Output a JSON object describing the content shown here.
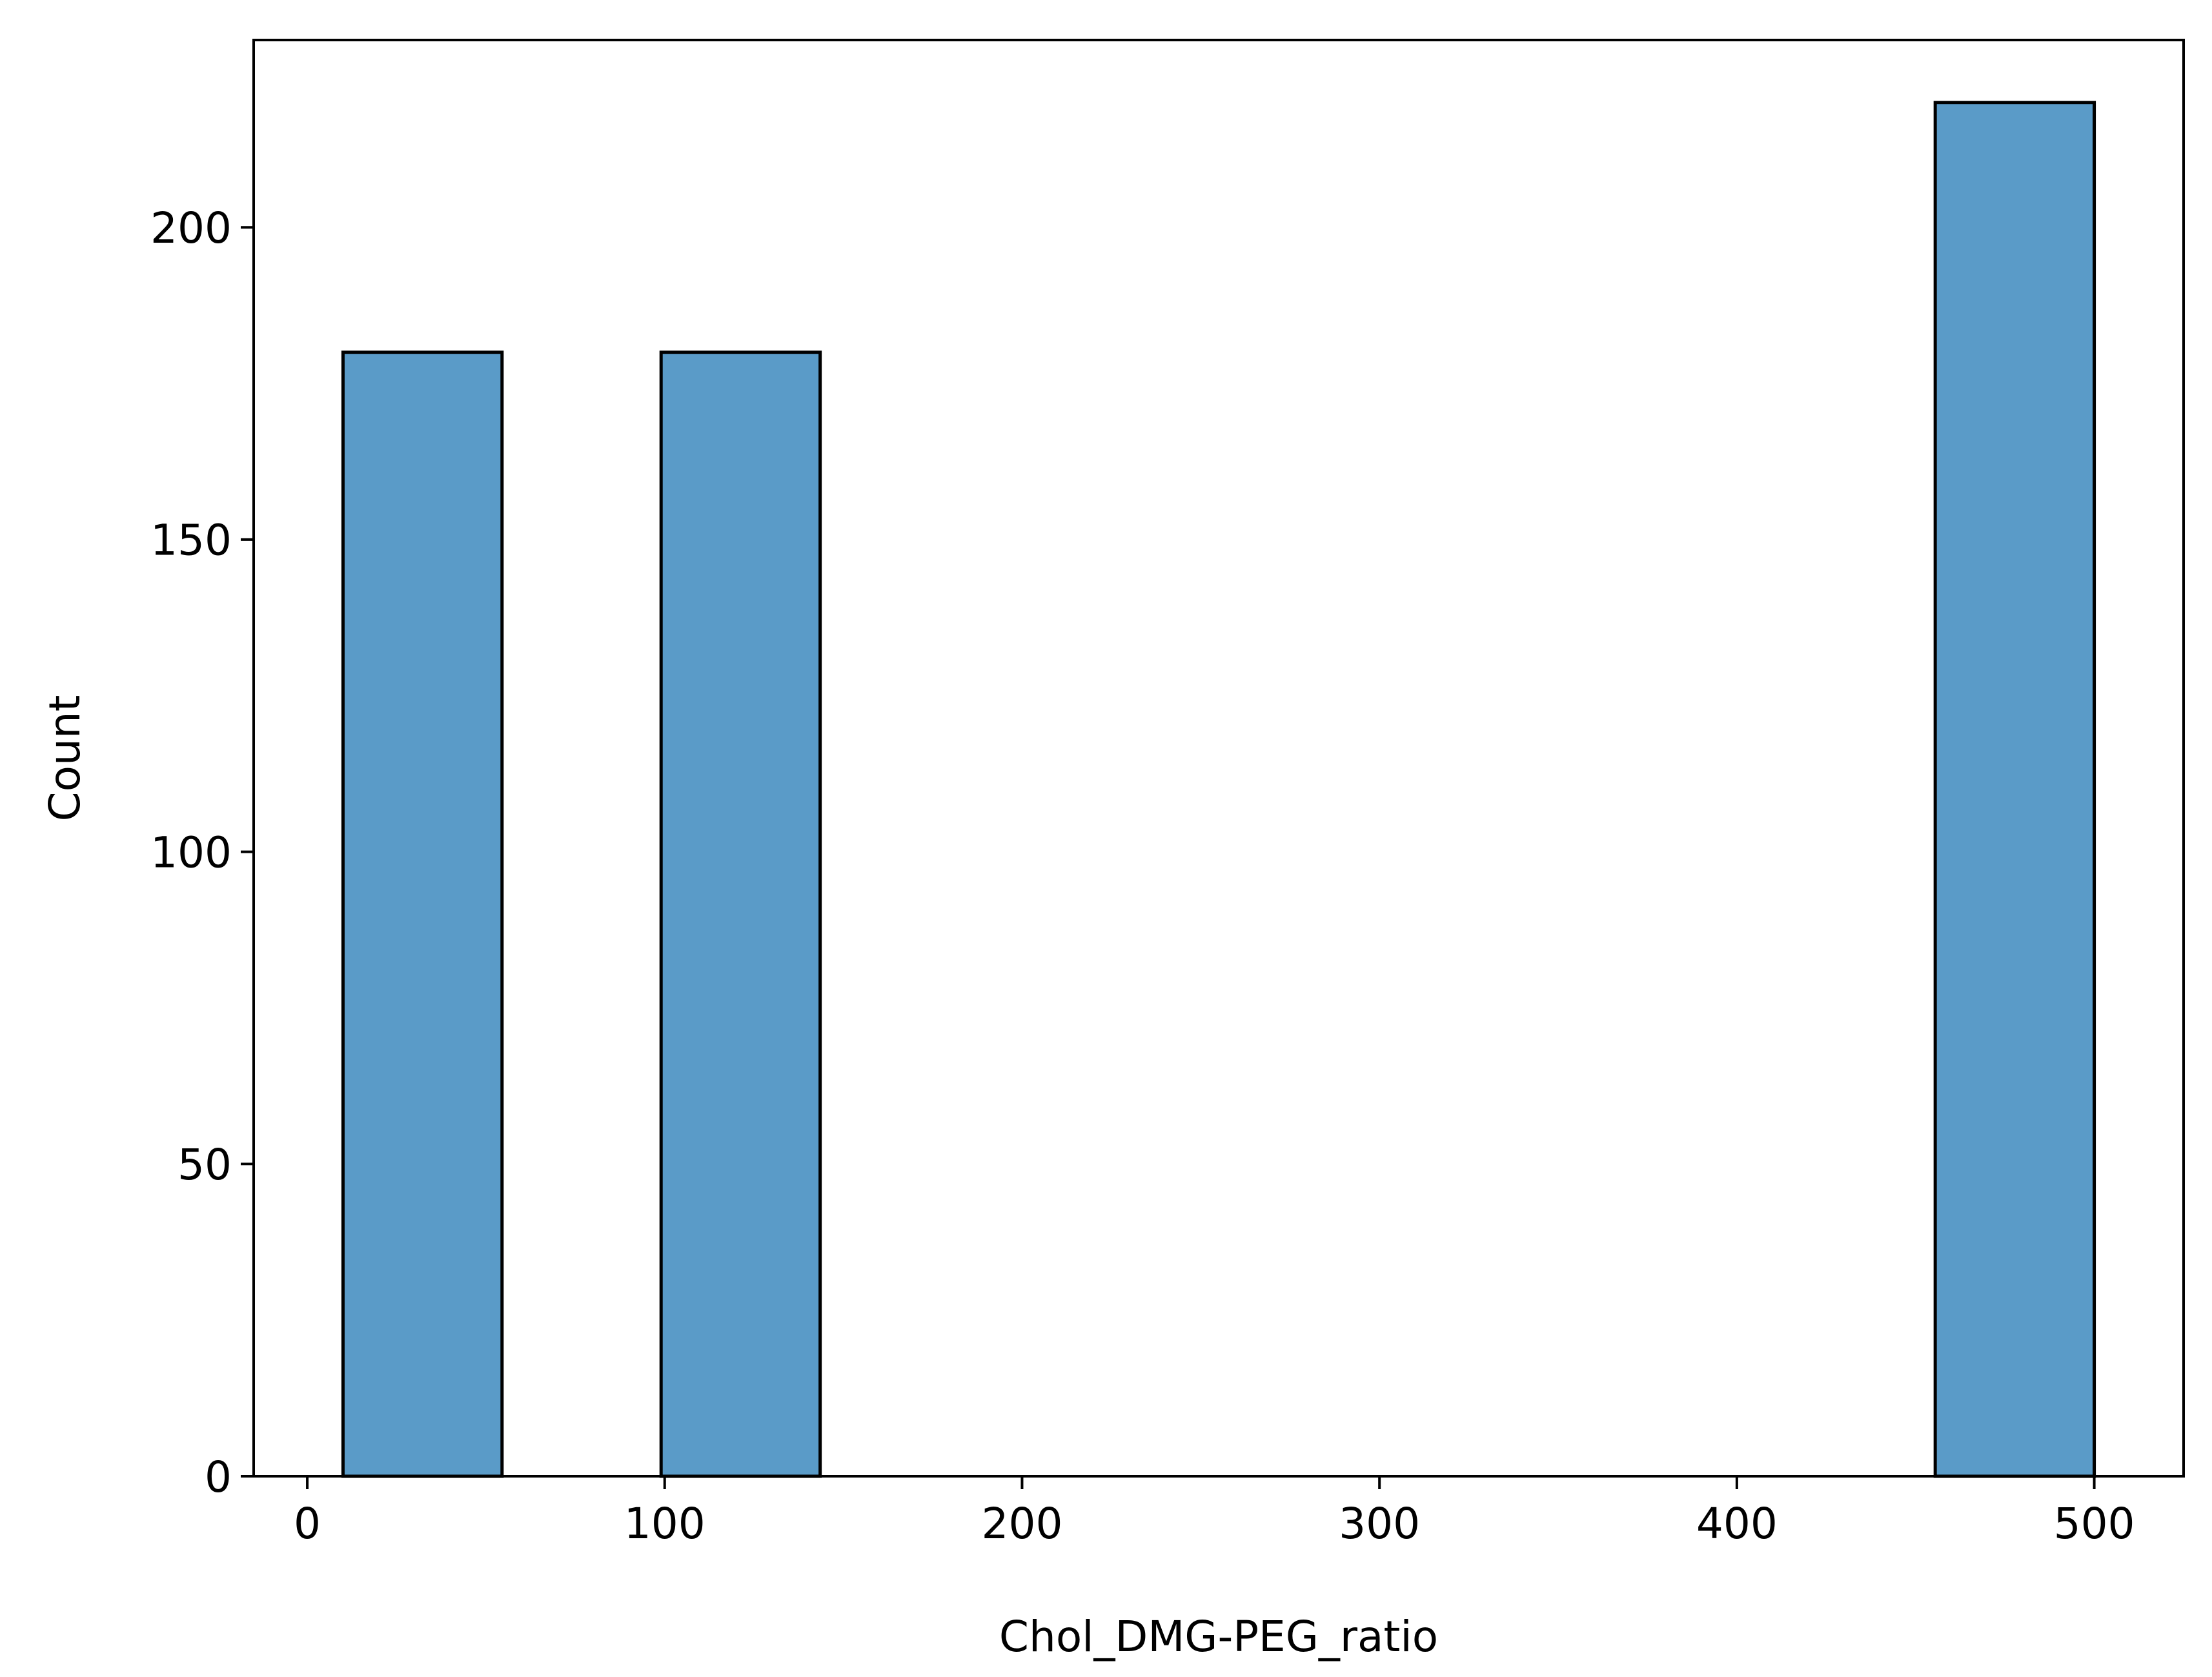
{
  "chart_data": {
    "type": "bar",
    "subtype": "histogram",
    "title": "",
    "xlabel": "Chol_DMG-PEG_ratio",
    "ylabel": "Count",
    "xlim": [
      -15,
      525
    ],
    "ylim": [
      0,
      230
    ],
    "xticks": [
      0,
      100,
      200,
      300,
      400,
      500
    ],
    "xtick_labels": [
      "0",
      "100",
      "200",
      "300",
      "400",
      "500"
    ],
    "yticks": [
      0,
      50,
      100,
      150,
      200
    ],
    "ytick_labels": [
      "0",
      "50",
      "100",
      "150",
      "200"
    ],
    "bins": [
      {
        "x_start": 10,
        "x_end": 54.5,
        "count": 180
      },
      {
        "x_start": 99,
        "x_end": 143.5,
        "count": 180
      },
      {
        "x_start": 455.5,
        "x_end": 500,
        "count": 220
      }
    ],
    "grid": false,
    "legend": "none",
    "colors": {
      "bar_fill": "#5a9bc8",
      "bar_edge": "#000000",
      "axes": "#000000",
      "background": "#ffffff"
    }
  }
}
